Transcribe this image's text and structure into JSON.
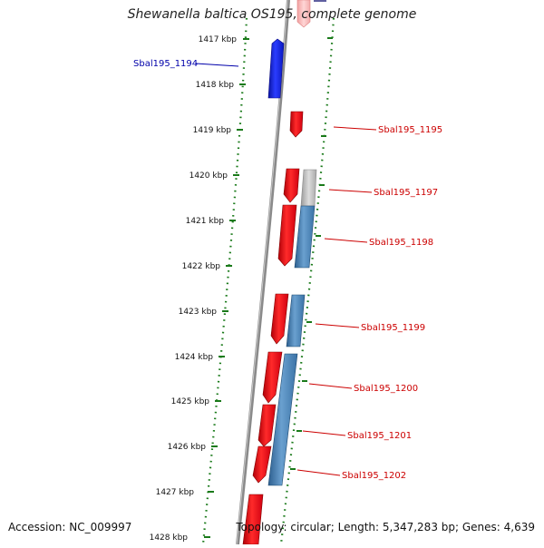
{
  "title": "Shewanella baltica OS195, complete genome",
  "footer": {
    "accession": "Accession: NC_009997",
    "topology": "Topology: circular; Length: 5,347,283 bp; Genes: 4,639"
  },
  "ruler": {
    "labels": [
      "1417 kbp",
      "1418 kbp",
      "1419 kbp",
      "1420 kbp",
      "1421 kbp",
      "1422 kbp",
      "1423 kbp",
      "1424 kbp",
      "1425 kbp",
      "1426 kbp",
      "1427 kbp",
      "1428 kbp"
    ]
  },
  "gene_labels": [
    {
      "text": "Sbal195_1194",
      "side": "left",
      "color": "#0000aa"
    },
    {
      "text": "Sbal195_1195",
      "side": "right",
      "color": "#cc0000"
    },
    {
      "text": "Sbal195_1197",
      "side": "right",
      "color": "#cc0000"
    },
    {
      "text": "Sbal195_1198",
      "side": "right",
      "color": "#cc0000"
    },
    {
      "text": "Sbal195_1199",
      "side": "right",
      "color": "#cc0000"
    },
    {
      "text": "Sbal195_1200",
      "side": "right",
      "color": "#cc0000"
    },
    {
      "text": "Sbal195_1201",
      "side": "right",
      "color": "#cc0000"
    },
    {
      "text": "Sbal195_1202",
      "side": "right",
      "color": "#cc0000"
    }
  ],
  "colors": {
    "forward_cds": "#e8141a",
    "reverse_cds": "#1f2fd6",
    "feature_blue": "#4a84b8",
    "feature_grey": "#bdbdbd",
    "backbone": "#8a8a8a",
    "tick": "#1a7a1a"
  }
}
